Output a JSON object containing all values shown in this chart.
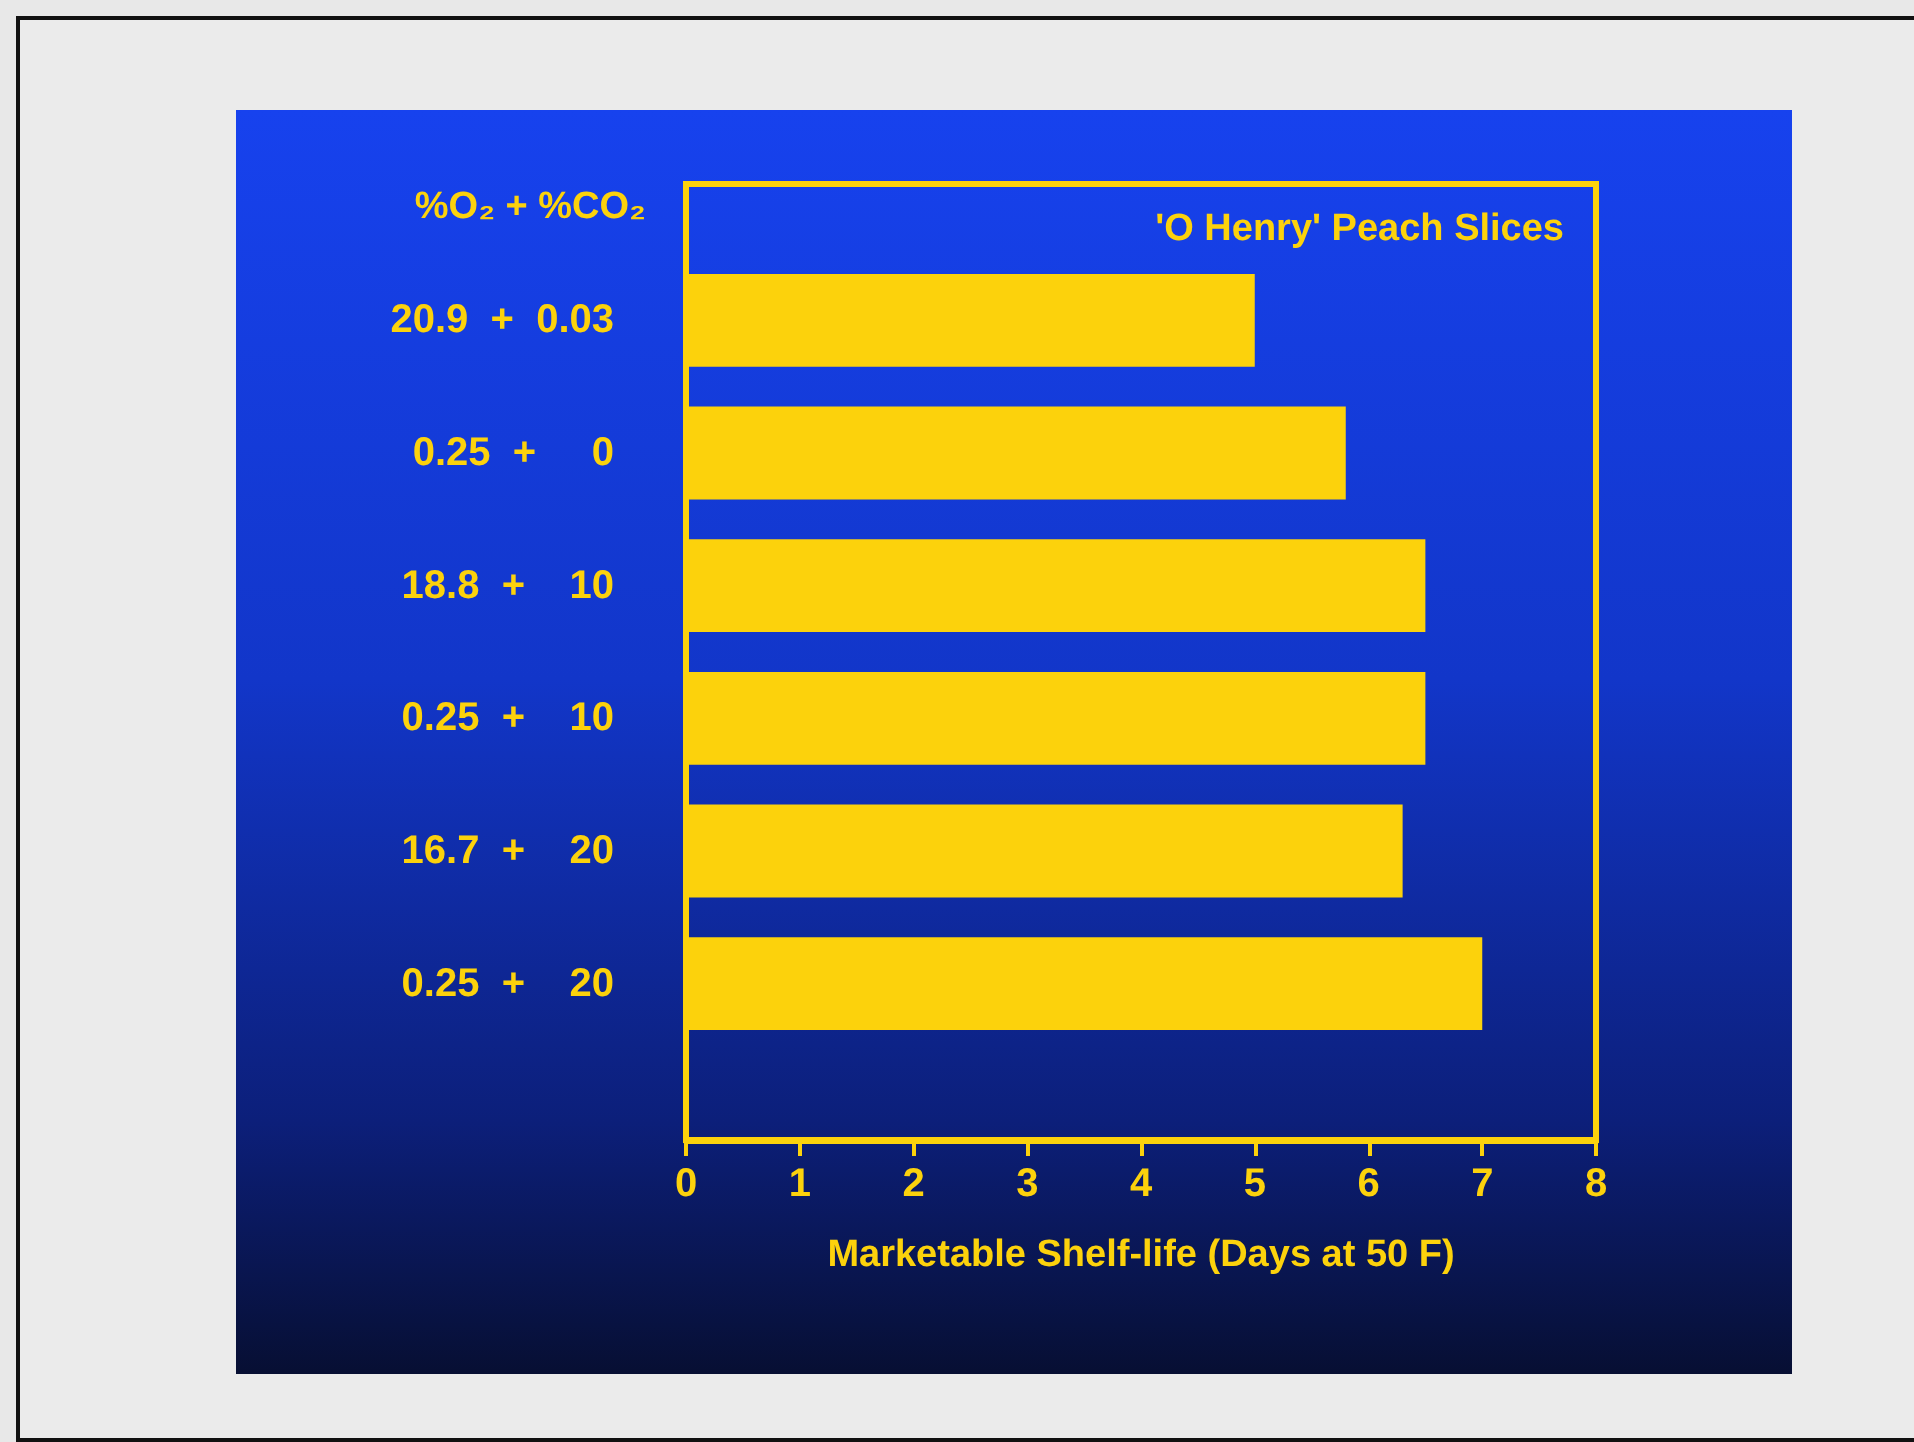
{
  "chart_data": {
    "type": "bar",
    "orientation": "horizontal",
    "title": "'O Henry' Peach Slices",
    "ylabel": "%O₂ + %CO₂",
    "xlabel": "Marketable Shelf-life (Days at 50 F)",
    "categories": [
      "20.9  +  0.03",
      "0.25  +     0",
      "18.8  +    10",
      "0.25  +    10",
      "16.7  +    20",
      "0.25  +    20"
    ],
    "values": [
      5.0,
      5.8,
      6.5,
      6.5,
      6.3,
      7.0
    ],
    "color": "#fcd20c",
    "xlim": [
      0,
      8
    ],
    "xticks": [
      0,
      1,
      2,
      3,
      4,
      5,
      6,
      7,
      8
    ],
    "grid": false
  }
}
